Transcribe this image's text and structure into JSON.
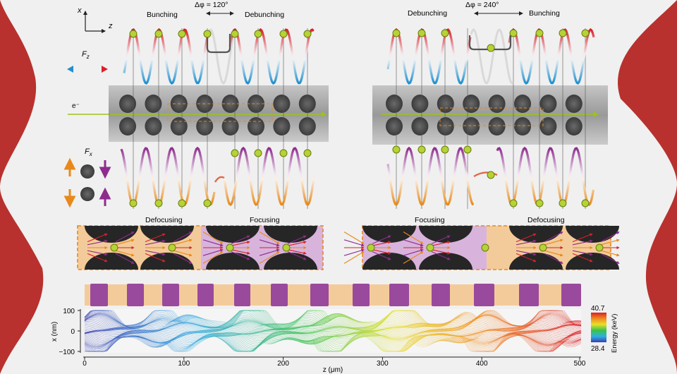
{
  "axes_indicator": {
    "x_label": "x",
    "z_label": "z"
  },
  "force_labels": {
    "fz": "F",
    "fz_sub": "z",
    "fx": "F",
    "fx_sub": "x",
    "electron": "e⁻"
  },
  "left_panel": {
    "delta_phi": "Δφ = 120°",
    "top_left_label": "Bunching",
    "top_right_label": "Debunching",
    "box_left_label": "Defocusing",
    "box_right_label": "Focusing"
  },
  "right_panel": {
    "delta_phi": "Δφ = 240°",
    "top_left_label": "Debunching",
    "top_right_label": "Bunching",
    "box_left_label": "Focusing",
    "box_right_label": "Defocusing"
  },
  "plot": {
    "ylabel": "x (nm)",
    "xlabel": "z (μm)",
    "y_ticks": [
      "100",
      "0",
      "−100"
    ],
    "x_ticks": [
      "0",
      "100",
      "200",
      "300",
      "400",
      "500"
    ]
  },
  "colorbar": {
    "label": "Energy (keV)",
    "max": "40.7",
    "min": "28.4"
  },
  "colors": {
    "frame": "#b8312e",
    "background": "#f0f0f0",
    "orange": "#e8891a",
    "purple": "#8e2c8e",
    "red": "#d8202a",
    "blue": "#1f8fd0",
    "green_dot": "#b5d334",
    "beam": "#9cc31c",
    "peach": "#f3cb9a",
    "lavender": "#d8b4dc",
    "block_purple": "#9a4a9c"
  },
  "structure": {
    "block_widths": [
      25,
      24,
      24,
      23,
      23,
      24,
      26,
      24,
      28,
      26,
      29,
      28,
      28
    ]
  }
}
